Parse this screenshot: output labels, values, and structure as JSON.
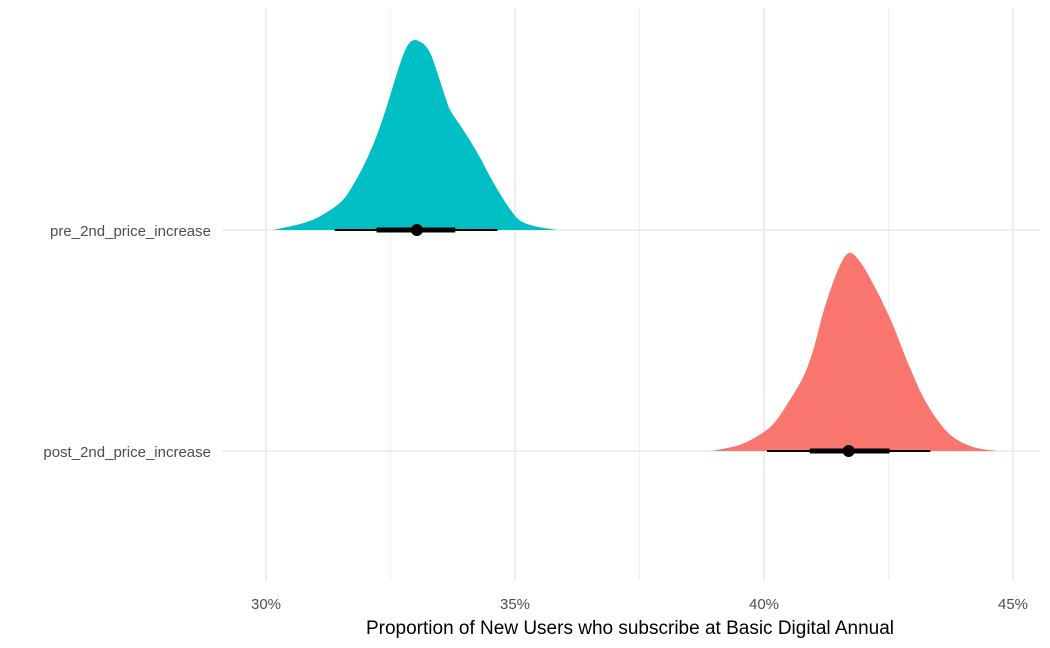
{
  "chart_data": {
    "type": "halfeye",
    "title": "",
    "xlabel": "Proportion of New Users who subscribe at Basic Digital Annual",
    "ylabel": "",
    "xlim": [
      0.2797,
      0.4857
    ],
    "x_ticks": [
      0.3,
      0.35,
      0.4,
      0.45
    ],
    "x_tick_labels": [
      "30%",
      "35%",
      "40%",
      "45%"
    ],
    "grid": true,
    "legend": "none",
    "categories": [
      "pre_2nd_price_increase",
      "post_2nd_price_increase"
    ],
    "series": [
      {
        "category": "pre_2nd_price_increase",
        "color": "#00BFC4",
        "density": {
          "x": [
            0.3015,
            0.308,
            0.312,
            0.3155,
            0.318,
            0.32,
            0.322,
            0.324,
            0.326,
            0.327,
            0.328,
            0.329,
            0.33,
            0.331,
            0.332,
            0.333,
            0.334,
            0.335,
            0.336,
            0.337,
            0.339,
            0.341,
            0.343,
            0.345,
            0.347,
            0.349,
            0.351,
            0.354,
            0.3585
          ],
          "y": [
            0.0,
            0.04,
            0.09,
            0.16,
            0.26,
            0.36,
            0.48,
            0.63,
            0.8,
            0.88,
            0.95,
            0.99,
            1.0,
            0.99,
            0.97,
            0.93,
            0.86,
            0.78,
            0.7,
            0.63,
            0.55,
            0.47,
            0.38,
            0.28,
            0.19,
            0.11,
            0.05,
            0.02,
            0.0
          ]
        },
        "point": 0.3303,
        "interval_66": [
          0.3222,
          0.338
        ],
        "interval_95": [
          0.3138,
          0.3465
        ]
      },
      {
        "category": "post_2nd_price_increase",
        "color": "#F8766D",
        "density": {
          "x": [
            0.3895,
            0.395,
            0.399,
            0.402,
            0.405,
            0.408,
            0.41,
            0.412,
            0.414,
            0.4155,
            0.4165,
            0.4175,
            0.4185,
            0.42,
            0.422,
            0.424,
            0.426,
            0.428,
            0.43,
            0.432,
            0.435,
            0.438,
            0.442,
            0.4467
          ],
          "y": [
            0.0,
            0.03,
            0.08,
            0.14,
            0.25,
            0.38,
            0.52,
            0.71,
            0.86,
            0.95,
            0.99,
            1.0,
            0.98,
            0.93,
            0.84,
            0.74,
            0.63,
            0.5,
            0.38,
            0.27,
            0.15,
            0.07,
            0.02,
            0.0
          ]
        },
        "point": 0.417,
        "interval_66": [
          0.4092,
          0.4252
        ],
        "interval_95": [
          0.4006,
          0.4334
        ]
      }
    ]
  }
}
